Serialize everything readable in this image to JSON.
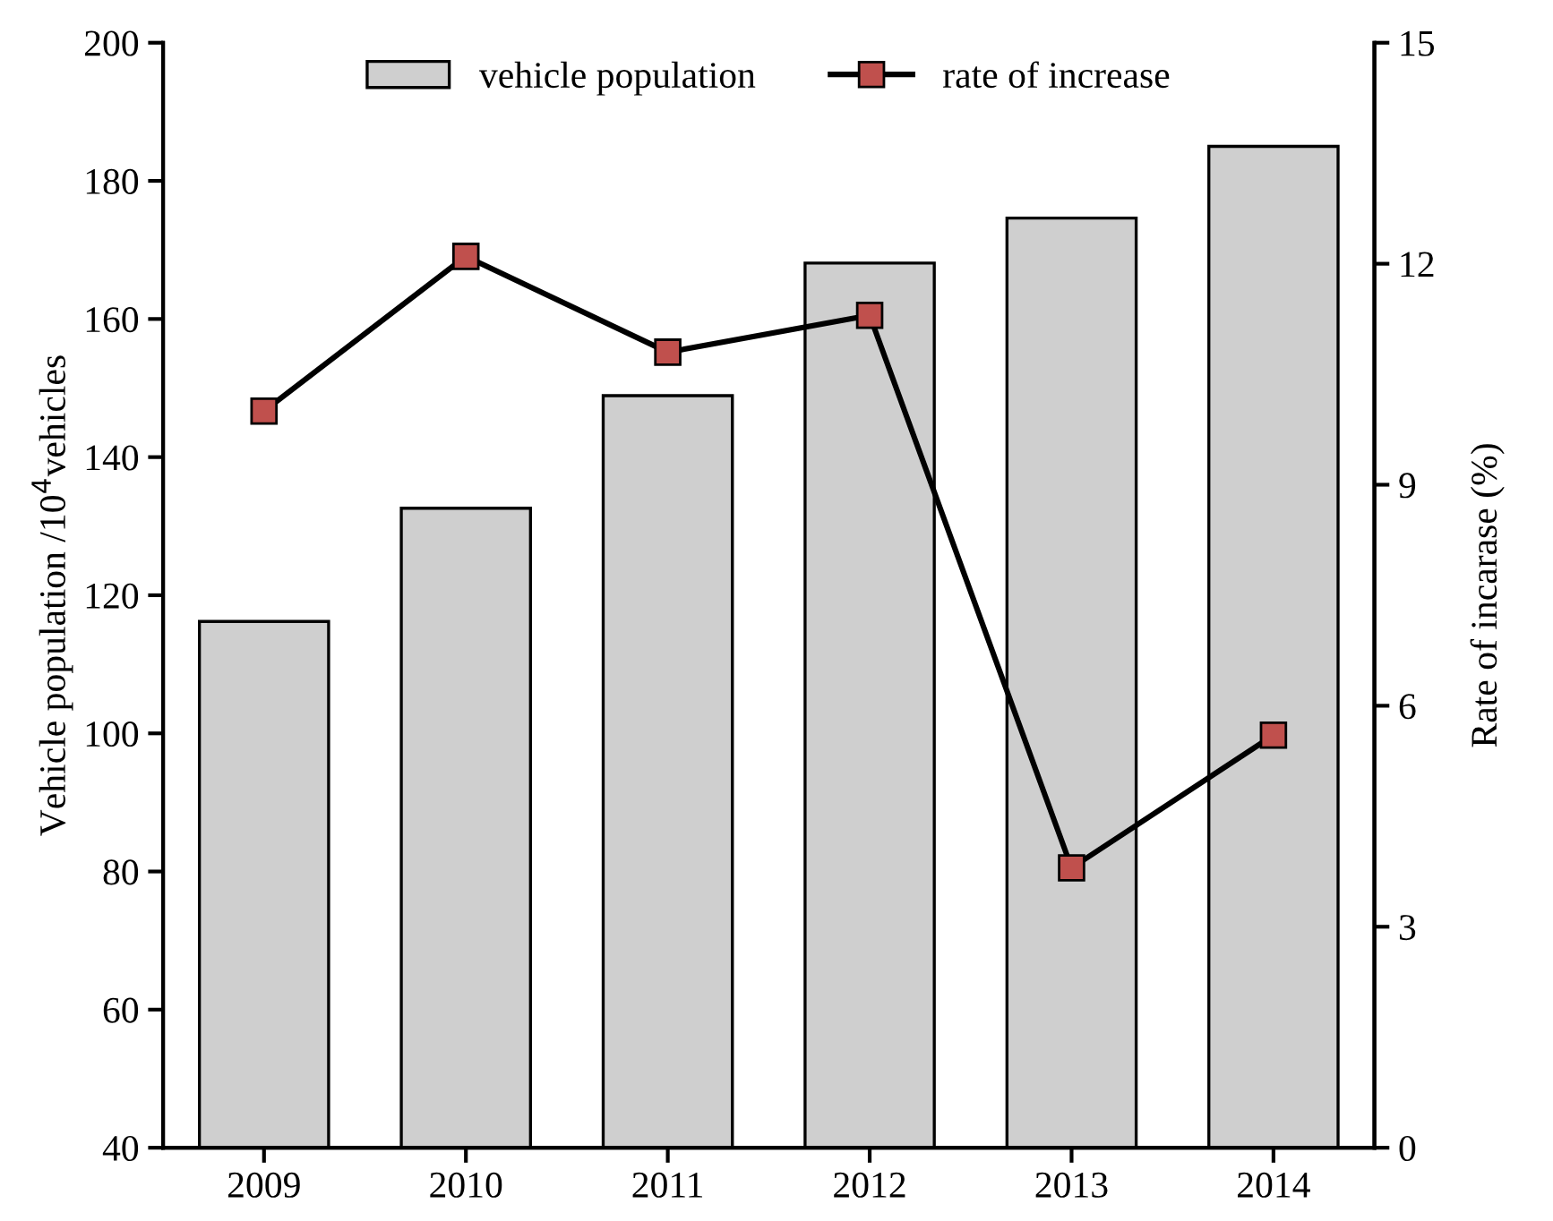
{
  "chart_data": {
    "type": "bar",
    "categories": [
      "2009",
      "2010",
      "2011",
      "2012",
      "2013",
      "2014"
    ],
    "series": [
      {
        "name": "vehicle population",
        "color": "#cfcfcf",
        "values": [
          116.2,
          132.6,
          148.9,
          168.1,
          174.6,
          185.0
        ]
      },
      {
        "name": "rate of increase",
        "type": "line",
        "axis": "y2",
        "color": "#c0504d",
        "values": [
          10.0,
          12.1,
          10.8,
          11.3,
          3.8,
          5.6
        ]
      }
    ],
    "ylabel": "Vehicle population /10$^{4}$vehicles",
    "y2label": "Rate of incarase (%)",
    "ylim": [
      40,
      200
    ],
    "yticks": [
      40,
      60,
      80,
      100,
      120,
      140,
      160,
      180,
      200
    ],
    "y2lim": [
      0,
      15
    ],
    "y2ticks": [
      0,
      3,
      6,
      9,
      12,
      15
    ],
    "marker": "square",
    "line_style": "solid",
    "legend": "top",
    "grid": false
  }
}
